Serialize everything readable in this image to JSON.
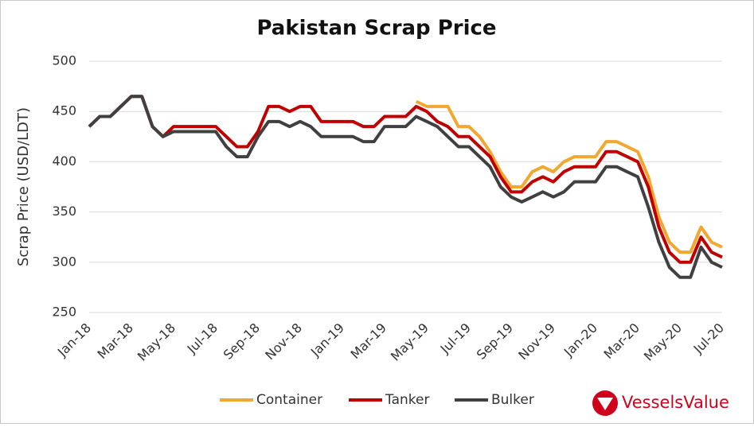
{
  "chart_data": {
    "type": "line",
    "title": "Pakistan Scrap Price",
    "y_label": "Scrap Price (USD/LDT)",
    "categories": [
      "Jan-18",
      null,
      null,
      null,
      "Mar-18",
      null,
      null,
      null,
      "May-18",
      null,
      null,
      null,
      "Jul-18",
      null,
      null,
      null,
      "Sep-18",
      null,
      null,
      null,
      "Nov-18",
      null,
      null,
      null,
      "Jan-19",
      null,
      null,
      null,
      "Mar-19",
      null,
      null,
      null,
      "May-19",
      null,
      null,
      null,
      "Jul-19",
      null,
      null,
      null,
      "Sep-19",
      null,
      null,
      null,
      "Nov-19",
      null,
      null,
      null,
      "Jan-20",
      null,
      null,
      null,
      "Mar-20",
      null,
      null,
      null,
      "May-20",
      null,
      null,
      null,
      "Jul-20"
    ],
    "series": [
      {
        "name": "Container",
        "color": "#f0a830",
        "values": [
          null,
          null,
          null,
          null,
          null,
          null,
          null,
          null,
          null,
          null,
          null,
          null,
          null,
          null,
          null,
          null,
          null,
          null,
          null,
          null,
          null,
          null,
          null,
          null,
          null,
          null,
          null,
          null,
          null,
          null,
          null,
          460,
          455,
          455,
          455,
          435,
          435,
          425,
          410,
          390,
          375,
          375,
          390,
          395,
          390,
          400,
          405,
          405,
          405,
          420,
          420,
          415,
          410,
          385,
          345,
          320,
          310,
          310,
          335,
          320,
          315
        ]
      },
      {
        "name": "Tanker",
        "color": "#c00000",
        "values": [
          435,
          445,
          445,
          455,
          465,
          465,
          435,
          425,
          435,
          435,
          435,
          435,
          435,
          425,
          415,
          415,
          430,
          455,
          455,
          450,
          455,
          455,
          440,
          440,
          440,
          440,
          435,
          435,
          445,
          445,
          445,
          455,
          450,
          440,
          435,
          425,
          425,
          415,
          405,
          385,
          370,
          370,
          380,
          385,
          380,
          390,
          395,
          395,
          395,
          410,
          410,
          405,
          400,
          375,
          335,
          310,
          300,
          300,
          325,
          310,
          305
        ]
      },
      {
        "name": "Bulker",
        "color": "#404040",
        "values": [
          435,
          445,
          445,
          455,
          465,
          465,
          435,
          425,
          430,
          430,
          430,
          430,
          430,
          415,
          405,
          405,
          425,
          440,
          440,
          435,
          440,
          435,
          425,
          425,
          425,
          425,
          420,
          420,
          435,
          435,
          435,
          445,
          440,
          435,
          425,
          415,
          415,
          405,
          395,
          375,
          365,
          360,
          365,
          370,
          365,
          370,
          380,
          380,
          380,
          395,
          395,
          390,
          385,
          355,
          320,
          295,
          285,
          285,
          315,
          300,
          295
        ]
      }
    ],
    "ylim": [
      250,
      500
    ],
    "yticks": [
      250,
      300,
      350,
      400,
      450,
      500
    ],
    "grid": true,
    "legend": "bottom",
    "brand": "VesselsValue"
  }
}
